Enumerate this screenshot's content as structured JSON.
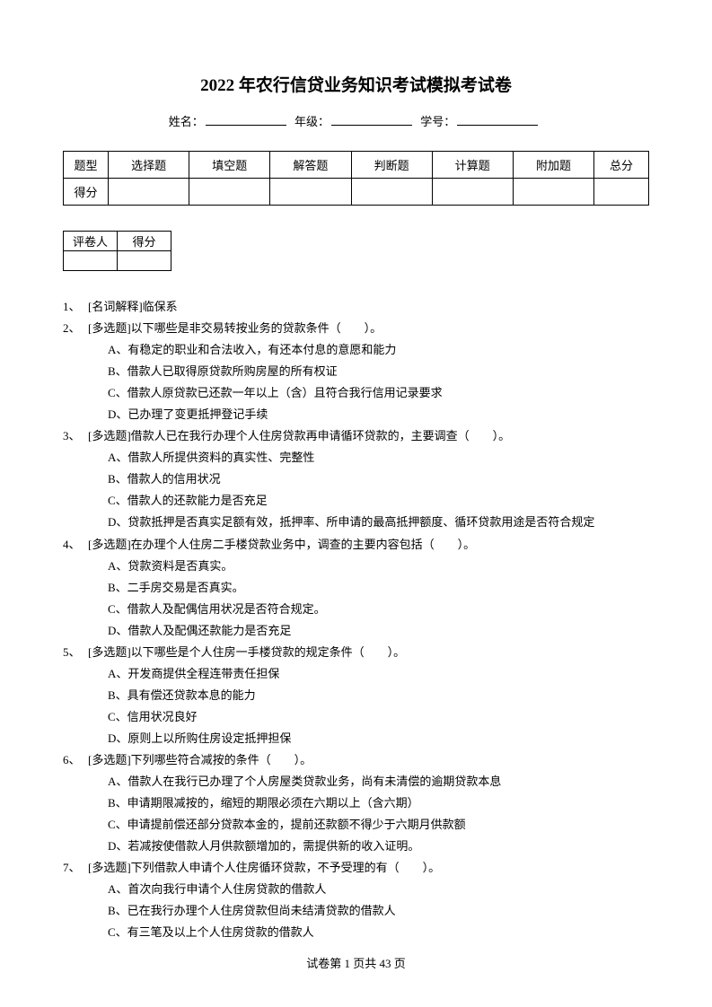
{
  "title": "2022 年农行信贷业务知识考试模拟考试卷",
  "info": {
    "name_label": "姓名：",
    "grade_label": "年级：",
    "id_label": "学号："
  },
  "score_table": {
    "row1": [
      "题型",
      "选择题",
      "填空题",
      "解答题",
      "判断题",
      "计算题",
      "附加题",
      "总分"
    ],
    "row2_label": "得分"
  },
  "grader_table": {
    "c1": "评卷人",
    "c2": "得分"
  },
  "questions": [
    {
      "num": "1、",
      "text": "[名词解释]临保系",
      "options": []
    },
    {
      "num": "2、",
      "text": "[多选题]以下哪些是非交易转按业务的贷款条件（　　）。",
      "options": [
        "A、有稳定的职业和合法收入，有还本付息的意愿和能力",
        "B、借款人已取得原贷款所购房屋的所有权证",
        "C、借款人原贷款已还款一年以上（含）且符合我行信用记录要求",
        "D、已办理了变更抵押登记手续"
      ]
    },
    {
      "num": "3、",
      "text": "[多选题]借款人已在我行办理个人住房贷款再申请循环贷款的，主要调查（　　）。",
      "options": [
        "A、借款人所提供资料的真实性、完整性",
        "B、借款人的信用状况",
        "C、借款人的还款能力是否充足",
        "D、贷款抵押是否真实足额有效，抵押率、所申请的最高抵押额度、循环贷款用途是否符合规定"
      ]
    },
    {
      "num": "4、",
      "text": "[多选题]在办理个人住房二手楼贷款业务中，调查的主要内容包括（　　）。",
      "options": [
        "A、贷款资料是否真实。",
        "B、二手房交易是否真实。",
        "C、借款人及配偶信用状况是否符合规定。",
        "D、借款人及配偶还款能力是否充足"
      ]
    },
    {
      "num": "5、",
      "text": "[多选题]以下哪些是个人住房一手楼贷款的规定条件（　　）。",
      "options": [
        "A、开发商提供全程连带责任担保",
        "B、具有偿还贷款本息的能力",
        "C、信用状况良好",
        "D、原则上以所购住房设定抵押担保"
      ]
    },
    {
      "num": "6、",
      "text": "[多选题]下列哪些符合减按的条件（　　）。",
      "options": [
        "A、借款人在我行已办理了个人房屋类贷款业务，尚有未清偿的逾期贷款本息",
        "B、申请期限减按的，缩短的期限必须在六期以上（含六期）",
        "C、申请提前偿还部分贷款本金的，提前还款额不得少于六期月供款额",
        "D、若减按使借款人月供款额增加的，需提供新的收入证明。"
      ]
    },
    {
      "num": "7、",
      "text": "[多选题]下列借款人申请个人住房循环贷款，不予受理的有（　　）。",
      "options": [
        "A、首次向我行申请个人住房贷款的借款人",
        "B、已在我行办理个人住房贷款但尚未结清贷款的借款人",
        "C、有三笔及以上个人住房贷款的借款人"
      ]
    }
  ],
  "footer": "试卷第 1 页共 43 页"
}
